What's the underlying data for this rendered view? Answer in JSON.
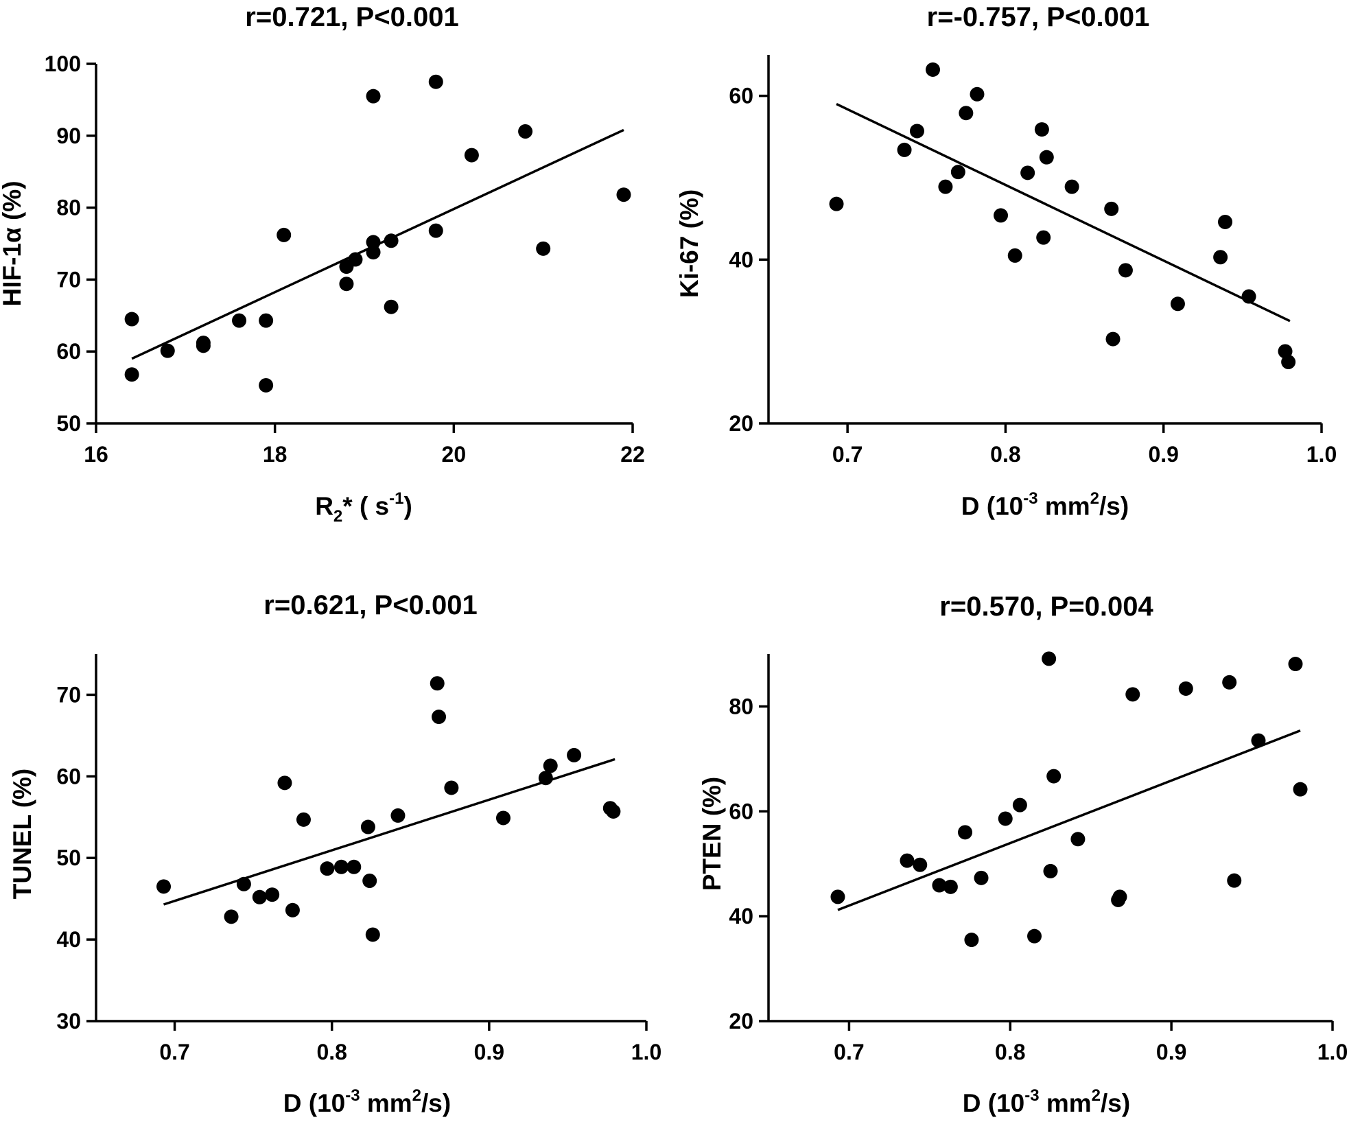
{
  "chart_data": [
    {
      "type": "scatter",
      "title": "r=0.721, P<0.001",
      "ylabel": "HIF-1α (%)",
      "xlabel_parts": [
        "R",
        "2",
        "* ( s",
        "-1",
        ")"
      ],
      "xlim": [
        16,
        22
      ],
      "ylim": [
        50,
        100
      ],
      "xticks": [
        16,
        18,
        20,
        22
      ],
      "yticks": [
        50,
        60,
        70,
        80,
        90,
        100
      ],
      "xtick_labels": [
        "16",
        "18",
        "20",
        "22"
      ],
      "ytick_labels": [
        "50",
        "60",
        "70",
        "80",
        "90",
        "100"
      ],
      "fit": [
        [
          16.4,
          59.0
        ],
        [
          21.9,
          90.8
        ]
      ],
      "points": [
        [
          16.4,
          64.5
        ],
        [
          16.4,
          56.8
        ],
        [
          16.8,
          60.1
        ],
        [
          17.2,
          61.2
        ],
        [
          17.2,
          60.8
        ],
        [
          17.6,
          64.3
        ],
        [
          17.9,
          64.3
        ],
        [
          17.9,
          55.3
        ],
        [
          18.1,
          76.2
        ],
        [
          18.8,
          71.8
        ],
        [
          18.8,
          69.4
        ],
        [
          18.9,
          72.8
        ],
        [
          19.1,
          95.5
        ],
        [
          19.1,
          75.2
        ],
        [
          19.1,
          73.8
        ],
        [
          19.3,
          75.4
        ],
        [
          19.3,
          66.2
        ],
        [
          19.8,
          97.5
        ],
        [
          19.8,
          76.8
        ],
        [
          20.2,
          87.3
        ],
        [
          20.8,
          90.6
        ],
        [
          21.0,
          74.3
        ],
        [
          21.9,
          81.8
        ]
      ]
    },
    {
      "type": "scatter",
      "title": "r=-0.757, P<0.001",
      "ylabel": "Ki-67 (%)",
      "xlabel_parts": [
        "D (10",
        "-3",
        " mm",
        "2",
        "/s)"
      ],
      "xlim": [
        0.65,
        1.0
      ],
      "ylim": [
        20,
        65
      ],
      "xticks": [
        0.7,
        0.8,
        0.9,
        1.0
      ],
      "yticks": [
        20,
        40,
        60
      ],
      "xtick_labels": [
        "0.7",
        "0.8",
        "0.9",
        "1.0"
      ],
      "ytick_labels": [
        "20",
        "40",
        "60"
      ],
      "fit": [
        [
          0.693,
          59.0
        ],
        [
          0.98,
          32.5
        ]
      ],
      "points": [
        [
          0.693,
          46.8
        ],
        [
          0.736,
          53.4
        ],
        [
          0.744,
          55.7
        ],
        [
          0.754,
          63.2
        ],
        [
          0.762,
          48.9
        ],
        [
          0.77,
          50.7
        ],
        [
          0.775,
          57.9
        ],
        [
          0.782,
          60.2
        ],
        [
          0.797,
          45.4
        ],
        [
          0.806,
          40.5
        ],
        [
          0.814,
          50.6
        ],
        [
          0.823,
          55.9
        ],
        [
          0.824,
          42.7
        ],
        [
          0.826,
          52.5
        ],
        [
          0.842,
          48.9
        ],
        [
          0.867,
          46.2
        ],
        [
          0.868,
          30.3
        ],
        [
          0.876,
          38.7
        ],
        [
          0.909,
          34.6
        ],
        [
          0.936,
          40.3
        ],
        [
          0.939,
          44.6
        ],
        [
          0.954,
          35.5
        ],
        [
          0.977,
          28.8
        ],
        [
          0.979,
          27.5
        ]
      ]
    },
    {
      "type": "scatter",
      "title": "r=0.621, P<0.001",
      "ylabel": "TUNEL (%)",
      "xlabel_parts": [
        "D (10",
        "-3",
        " mm",
        "2",
        "/s)"
      ],
      "xlim": [
        0.65,
        1.0
      ],
      "ylim": [
        30,
        75
      ],
      "xticks": [
        0.7,
        0.8,
        0.9,
        1.0
      ],
      "yticks": [
        30,
        40,
        50,
        60,
        70
      ],
      "xtick_labels": [
        "0.7",
        "0.8",
        "0.9",
        "1.0"
      ],
      "ytick_labels": [
        "30",
        "40",
        "50",
        "60",
        "70"
      ],
      "fit": [
        [
          0.693,
          44.3
        ],
        [
          0.98,
          62.1
        ]
      ],
      "points": [
        [
          0.693,
          46.5
        ],
        [
          0.736,
          42.8
        ],
        [
          0.744,
          46.8
        ],
        [
          0.754,
          45.2
        ],
        [
          0.762,
          45.5
        ],
        [
          0.77,
          59.2
        ],
        [
          0.775,
          43.6
        ],
        [
          0.782,
          54.7
        ],
        [
          0.797,
          48.7
        ],
        [
          0.806,
          48.9
        ],
        [
          0.814,
          48.9
        ],
        [
          0.823,
          53.8
        ],
        [
          0.824,
          47.2
        ],
        [
          0.826,
          40.6
        ],
        [
          0.842,
          55.2
        ],
        [
          0.867,
          71.4
        ],
        [
          0.868,
          67.3
        ],
        [
          0.876,
          58.6
        ],
        [
          0.909,
          54.9
        ],
        [
          0.936,
          59.8
        ],
        [
          0.939,
          61.3
        ],
        [
          0.954,
          62.6
        ],
        [
          0.977,
          56.1
        ],
        [
          0.979,
          55.7
        ]
      ]
    },
    {
      "type": "scatter",
      "title": "r=0.570, P=0.004",
      "ylabel": "PTEN (%)",
      "xlabel_parts": [
        "D (10",
        "-3",
        " mm",
        "2",
        "/s)"
      ],
      "xlim": [
        0.65,
        1.0
      ],
      "ylim": [
        20,
        90
      ],
      "xticks": [
        0.7,
        0.8,
        0.9,
        1.0
      ],
      "yticks": [
        20,
        40,
        60,
        80
      ],
      "xtick_labels": [
        "0.7",
        "0.8",
        "0.9",
        "1.0"
      ],
      "ytick_labels": [
        "20",
        "40",
        "60",
        "80"
      ],
      "fit": [
        [
          0.693,
          41.2
        ],
        [
          0.98,
          75.4
        ]
      ],
      "points": [
        [
          0.693,
          43.7
        ],
        [
          0.736,
          50.6
        ],
        [
          0.744,
          49.8
        ],
        [
          0.756,
          45.9
        ],
        [
          0.763,
          45.6
        ],
        [
          0.772,
          56.0
        ],
        [
          0.776,
          35.5
        ],
        [
          0.782,
          47.3
        ],
        [
          0.797,
          58.6
        ],
        [
          0.806,
          61.2
        ],
        [
          0.815,
          36.2
        ],
        [
          0.824,
          89.1
        ],
        [
          0.825,
          48.6
        ],
        [
          0.827,
          66.7
        ],
        [
          0.842,
          54.7
        ],
        [
          0.867,
          43.1
        ],
        [
          0.868,
          43.7
        ],
        [
          0.876,
          82.3
        ],
        [
          0.909,
          83.4
        ],
        [
          0.936,
          84.6
        ],
        [
          0.939,
          46.8
        ],
        [
          0.954,
          73.5
        ],
        [
          0.977,
          88.1
        ],
        [
          0.98,
          64.2
        ]
      ]
    }
  ]
}
